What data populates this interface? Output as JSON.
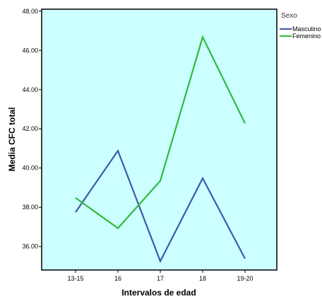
{
  "chart_data": {
    "type": "line",
    "title": "",
    "xlabel": "Intervalos de edad",
    "ylabel": "Media CFC total",
    "categories": [
      "13-15",
      "16",
      "17",
      "18",
      "19-20"
    ],
    "y_tick_labels": [
      "36.00",
      "38.00",
      "40.00",
      "42.00",
      "44.00",
      "46.00",
      "48.00"
    ],
    "y_ticks": [
      36,
      38,
      40,
      42,
      44,
      46,
      48
    ],
    "ylim": [
      34.8,
      48.1
    ],
    "grid": false,
    "plot_background": "#ccffff",
    "legend": {
      "title": "Sexo",
      "placement": "right"
    },
    "series": [
      {
        "name": "Masculino",
        "color": "#3e58ac",
        "values": [
          37.75,
          40.88,
          35.25,
          39.48,
          35.38
        ]
      },
      {
        "name": "Femenino",
        "color": "#2dbb3c",
        "values": [
          38.48,
          36.93,
          39.35,
          46.68,
          42.28
        ]
      }
    ]
  }
}
